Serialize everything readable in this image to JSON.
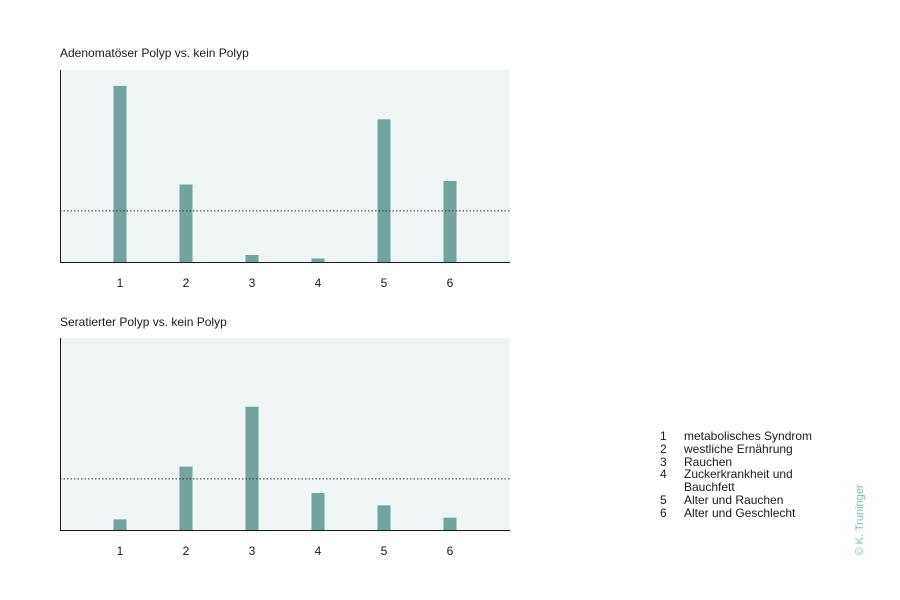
{
  "charts": [
    {
      "title": "Adenomatöser Polyp vs. kein Polyp",
      "chart_data": {
        "type": "bar",
        "title": "Adenomatöser Polyp vs. kein Polyp",
        "categories": [
          "1",
          "2",
          "3",
          "4",
          "5",
          "6"
        ],
        "values": [
          1.0,
          0.44,
          0.04,
          0.02,
          0.81,
          0.46
        ],
        "reference_line": 0.29,
        "ylim": [
          0,
          1.09
        ],
        "xlabel": "",
        "ylabel": ""
      }
    },
    {
      "title": "Seratierter Polyp vs. kein Polyp",
      "chart_data": {
        "type": "bar",
        "title": "Seratierter Polyp vs. kein Polyp",
        "categories": [
          "1",
          "2",
          "3",
          "4",
          "5",
          "6"
        ],
        "values": [
          0.06,
          0.36,
          0.7,
          0.21,
          0.14,
          0.07
        ],
        "reference_line": 0.29,
        "ylim": [
          0,
          1.09
        ],
        "xlabel": "",
        "ylabel": ""
      }
    }
  ],
  "legend": [
    {
      "num": "1",
      "text": "metabolisches Syndrom"
    },
    {
      "num": "2",
      "text": "westliche Ernährung"
    },
    {
      "num": "3",
      "text": "Rauchen"
    },
    {
      "num": "4",
      "text": "Zuckerkrankheit und Bauchfett"
    },
    {
      "num": "5",
      "text": "Alter und Rauchen"
    },
    {
      "num": "6",
      "text": "Alter und Geschlecht"
    }
  ],
  "copyright": "© K. Truninger",
  "colors": {
    "bar": "#72a39f",
    "panel_bg": "#eff5f5",
    "axis": "#1a1a1a",
    "reference_line": "#333333",
    "copyright": "#7fb9b6"
  }
}
